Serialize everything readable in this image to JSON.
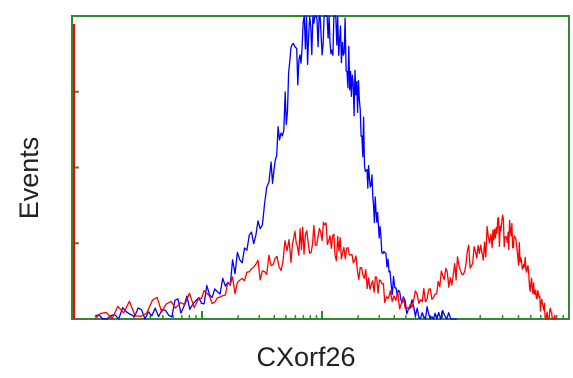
{
  "chart_data": {
    "type": "line",
    "title": "",
    "xlabel": "CXorf26",
    "ylabel": "Events",
    "xscale": "log",
    "xlim": [
      0.5,
      4.0
    ],
    "ylim": [
      0,
      1.0
    ],
    "grid": false,
    "legend": "none",
    "frame_color": "#2e8b2e",
    "series": [
      {
        "color": "#0000ff",
        "x": [
          0.55,
          0.65,
          0.75,
          0.85,
          0.95,
          1.05,
          1.15,
          1.22,
          1.28,
          1.34,
          1.4,
          1.46,
          1.52,
          1.58,
          1.64,
          1.7,
          1.76,
          1.82,
          1.9,
          2.0,
          2.15,
          2.3,
          2.5
        ],
        "y": [
          0.01,
          0.02,
          0.03,
          0.06,
          0.12,
          0.25,
          0.45,
          0.7,
          0.88,
          0.97,
          1.0,
          1.0,
          1.0,
          0.9,
          0.75,
          0.58,
          0.4,
          0.24,
          0.12,
          0.05,
          0.02,
          0.01,
          0.0
        ]
      },
      {
        "color": "#ff0000",
        "x": [
          0.55,
          0.7,
          0.85,
          0.95,
          1.05,
          1.15,
          1.25,
          1.32,
          1.4,
          1.48,
          1.56,
          1.65,
          1.75,
          1.85,
          2.0,
          2.15,
          2.3,
          2.45,
          2.6,
          2.75,
          2.9,
          3.0,
          3.1,
          3.2,
          3.3,
          3.4,
          3.5,
          3.6,
          3.7,
          3.8
        ],
        "y": [
          0.02,
          0.04,
          0.07,
          0.1,
          0.14,
          0.18,
          0.23,
          0.26,
          0.27,
          0.26,
          0.22,
          0.17,
          0.12,
          0.08,
          0.06,
          0.08,
          0.11,
          0.15,
          0.19,
          0.23,
          0.27,
          0.3,
          0.29,
          0.24,
          0.18,
          0.12,
          0.07,
          0.03,
          0.01,
          0.0
        ]
      }
    ]
  }
}
